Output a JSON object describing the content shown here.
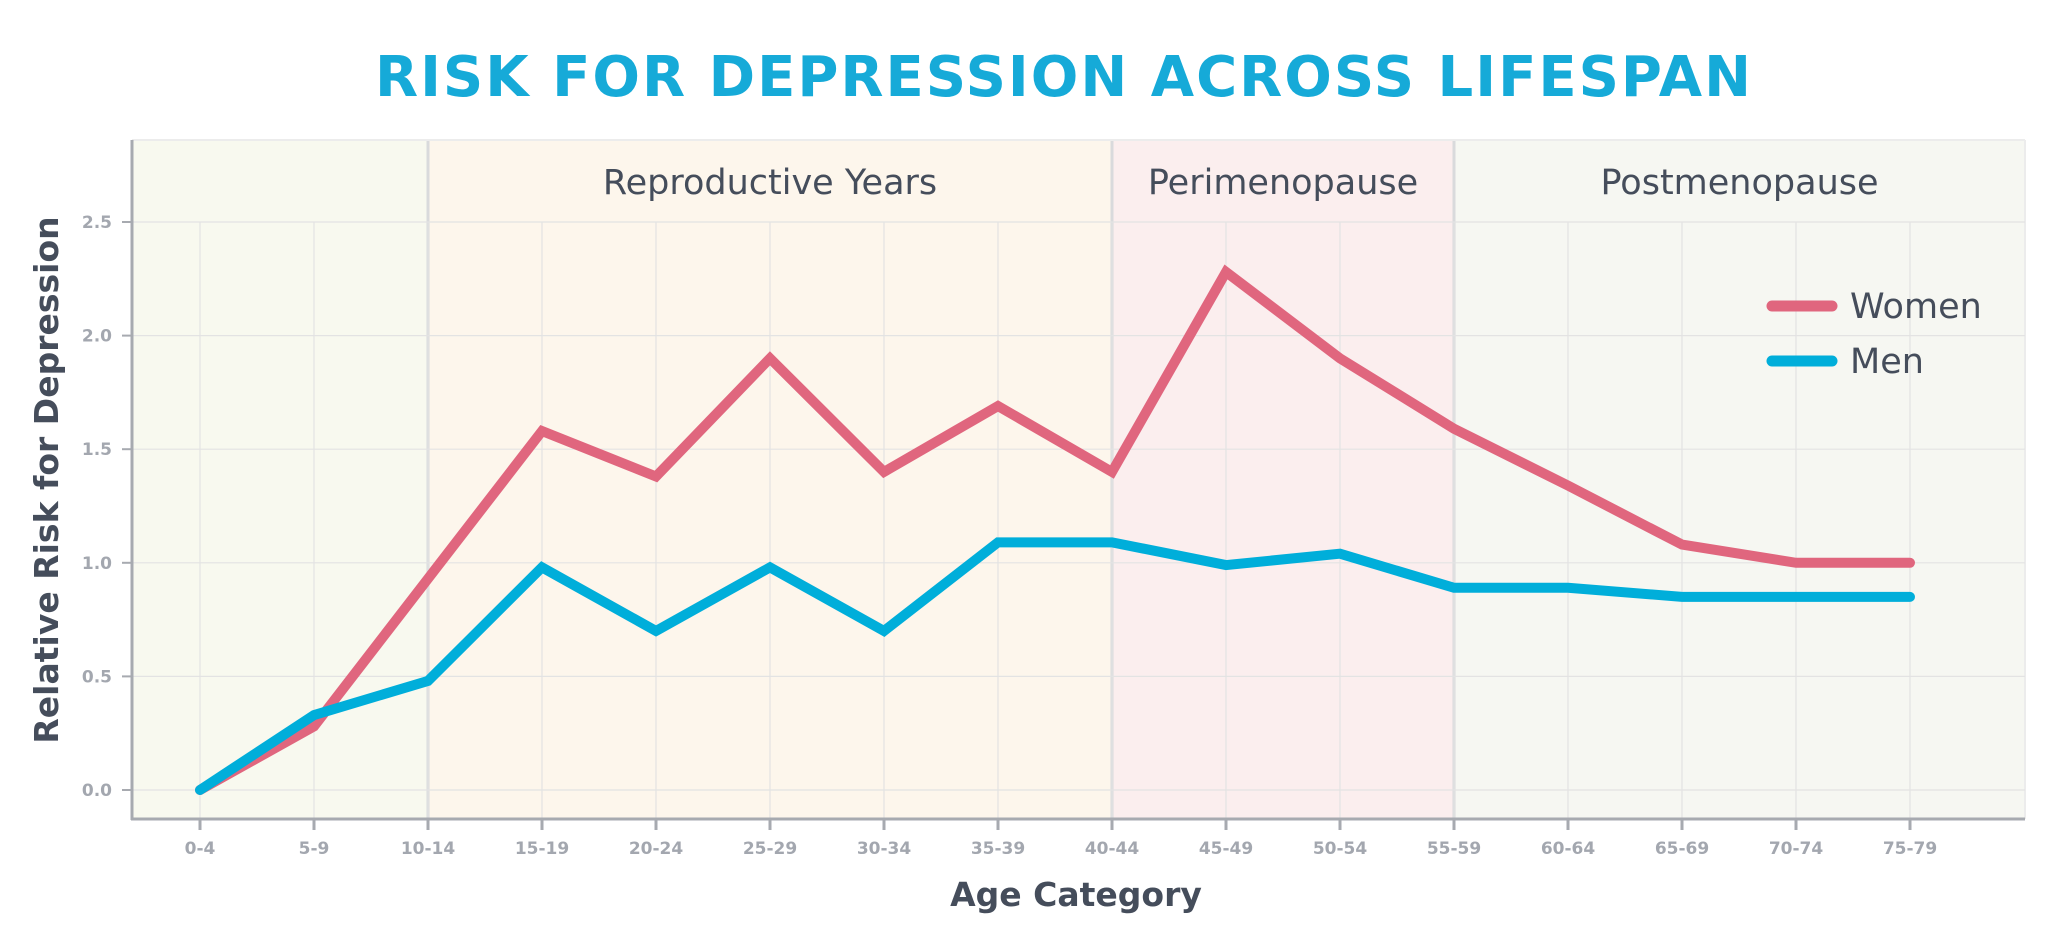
{
  "chart_data": {
    "type": "line",
    "title": "RISK FOR DEPRESSION ACROSS LIFESPAN",
    "xlabel": "Age Category",
    "ylabel": "Relative Risk for Depression",
    "categories": [
      "0-4",
      "5-9",
      "10-14",
      "15-19",
      "20-24",
      "25-29",
      "30-34",
      "35-39",
      "40-44",
      "45-49",
      "50-54",
      "55-59",
      "60-64",
      "65-69",
      "70-74",
      "75-79"
    ],
    "yticks": [
      "0.0",
      "0.5",
      "1.0",
      "1.5",
      "2.0",
      "2.5"
    ],
    "ylim": [
      0,
      2.5
    ],
    "grid": true,
    "legend_position": "top-right",
    "series": [
      {
        "name": "Women",
        "color": "#E0667E",
        "values": [
          0,
          0.28,
          0.93,
          1.58,
          1.38,
          1.9,
          1.4,
          1.69,
          1.4,
          2.28,
          1.9,
          1.59,
          1.34,
          1.08,
          1.0,
          1.0
        ]
      },
      {
        "name": "Men",
        "color": "#00AEDA",
        "values": [
          0,
          0.33,
          0.48,
          0.98,
          0.7,
          0.98,
          0.7,
          1.09,
          1.09,
          0.99,
          1.04,
          0.89,
          0.89,
          0.85,
          0.85,
          0.85
        ]
      }
    ],
    "regions": [
      {
        "label": "",
        "from": "0-4",
        "to": "10-14",
        "color": "#F8F9EF"
      },
      {
        "label": "Reproductive Years",
        "from": "10-14",
        "to": "40-44",
        "color": "#FDF6EC"
      },
      {
        "label": "Perimenopause",
        "from": "40-44",
        "to": "55-59",
        "color": "#FBEEEE"
      },
      {
        "label": "Postmenopause",
        "from": "55-59",
        "to": "end",
        "color": "#F6F7F2"
      }
    ]
  }
}
